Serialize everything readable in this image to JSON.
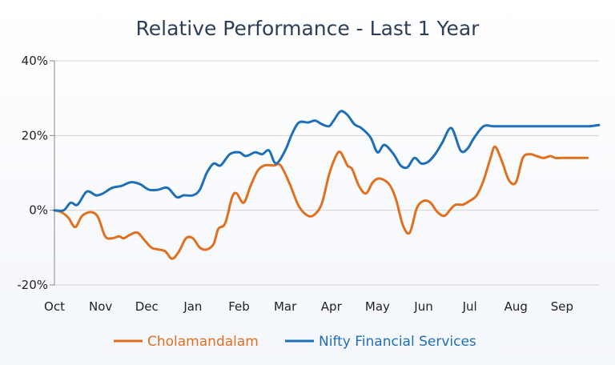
{
  "chart_data": {
    "type": "line",
    "title": "Relative Performance - Last 1 Year",
    "xlabel": "",
    "ylabel": "",
    "ylim": [
      -20,
      40
    ],
    "yticks": [
      -20,
      0,
      20,
      40
    ],
    "ytick_labels": [
      "-20%",
      "0%",
      "20%",
      "40%"
    ],
    "xlim": [
      0,
      11.8
    ],
    "categories": [
      "Oct",
      "Nov",
      "Dec",
      "Jan",
      "Feb",
      "Mar",
      "Apr",
      "May",
      "Jun",
      "Jul",
      "Aug",
      "Sep"
    ],
    "grid": true,
    "legend": "bottom",
    "series": [
      {
        "name": "Cholamandalam",
        "color": "#e07020",
        "x": [
          0,
          0.15,
          0.3,
          0.45,
          0.6,
          0.8,
          0.95,
          1.1,
          1.25,
          1.4,
          1.5,
          1.65,
          1.8,
          1.95,
          2.1,
          2.25,
          2.4,
          2.55,
          2.7,
          2.85,
          3.0,
          3.15,
          3.3,
          3.45,
          3.55,
          3.7,
          3.85,
          3.95,
          4.1,
          4.25,
          4.4,
          4.55,
          4.75,
          4.9,
          5.1,
          5.3,
          5.5,
          5.65,
          5.8,
          5.95,
          6.1,
          6.2,
          6.35,
          6.45,
          6.6,
          6.75,
          6.9,
          7.05,
          7.25,
          7.4,
          7.55,
          7.7,
          7.85,
          8.0,
          8.15,
          8.3,
          8.45,
          8.6,
          8.7,
          8.85,
          9.0,
          9.15,
          9.3,
          9.45,
          9.55,
          9.7,
          9.85,
          10.0,
          10.15,
          10.3,
          10.45,
          10.6,
          10.75,
          10.85,
          11.0,
          11.1,
          11.25,
          11.4,
          11.55
        ],
        "values": [
          0,
          -0.5,
          -2,
          -4.5,
          -1.5,
          -0.5,
          -2,
          -7,
          -7.5,
          -7,
          -7.5,
          -6.5,
          -6,
          -8,
          -10,
          -10.5,
          -11,
          -13,
          -11,
          -7.5,
          -7.5,
          -10,
          -10.5,
          -9,
          -5,
          -3.5,
          3.5,
          4.5,
          2,
          6.5,
          10.5,
          12,
          12,
          12,
          7,
          1,
          -1.5,
          -1,
          2,
          9.5,
          14.5,
          15.5,
          12,
          11,
          6.5,
          4.5,
          7.5,
          8.5,
          7,
          3,
          -4,
          -6,
          0.5,
          2.5,
          2,
          -0.5,
          -1.5,
          0.5,
          1.5,
          1.5,
          2.5,
          4,
          8,
          14,
          17,
          13,
          8,
          7.5,
          14,
          15,
          14.5,
          14,
          14.5,
          14,
          14,
          14,
          14,
          14,
          14
        ]
      },
      {
        "name": "Nifty Financial Services",
        "color": "#1f6fb8",
        "x": [
          0,
          0.2,
          0.35,
          0.5,
          0.7,
          0.9,
          1.05,
          1.25,
          1.45,
          1.65,
          1.85,
          2.05,
          2.25,
          2.45,
          2.65,
          2.8,
          3.0,
          3.15,
          3.3,
          3.45,
          3.6,
          3.8,
          4.0,
          4.15,
          4.35,
          4.5,
          4.65,
          4.8,
          5.0,
          5.15,
          5.3,
          5.5,
          5.65,
          5.8,
          5.95,
          6.05,
          6.2,
          6.35,
          6.5,
          6.65,
          6.85,
          7.0,
          7.15,
          7.35,
          7.5,
          7.65,
          7.8,
          7.95,
          8.1,
          8.25,
          8.4,
          8.6,
          8.8,
          8.95,
          9.1,
          9.3,
          9.5,
          9.7,
          9.9,
          10.05,
          10.2,
          10.4,
          10.55,
          10.7,
          10.85,
          11.0,
          11.15,
          11.3,
          11.45,
          11.6,
          11.8
        ],
        "values": [
          0,
          0,
          2,
          1.5,
          5,
          4,
          4.5,
          6,
          6.5,
          7.5,
          7,
          5.5,
          5.5,
          6,
          3.5,
          4,
          4,
          5.5,
          10,
          12.5,
          12,
          15,
          15.5,
          14.5,
          15.5,
          15,
          16,
          12.5,
          16,
          20.5,
          23.5,
          23.5,
          24,
          23,
          22.5,
          24,
          26.5,
          25.5,
          23,
          22,
          19.5,
          15.5,
          17.5,
          15,
          12,
          11.5,
          14,
          12.5,
          13,
          15,
          18,
          22,
          16,
          16.5,
          19.5,
          22.5,
          22.5,
          22.5,
          22.5,
          22.5,
          22.5,
          22.5,
          22.5,
          22.5,
          22.5,
          22.5,
          22.5,
          22.5,
          22.5,
          22.5,
          22.8
        ]
      }
    ]
  }
}
